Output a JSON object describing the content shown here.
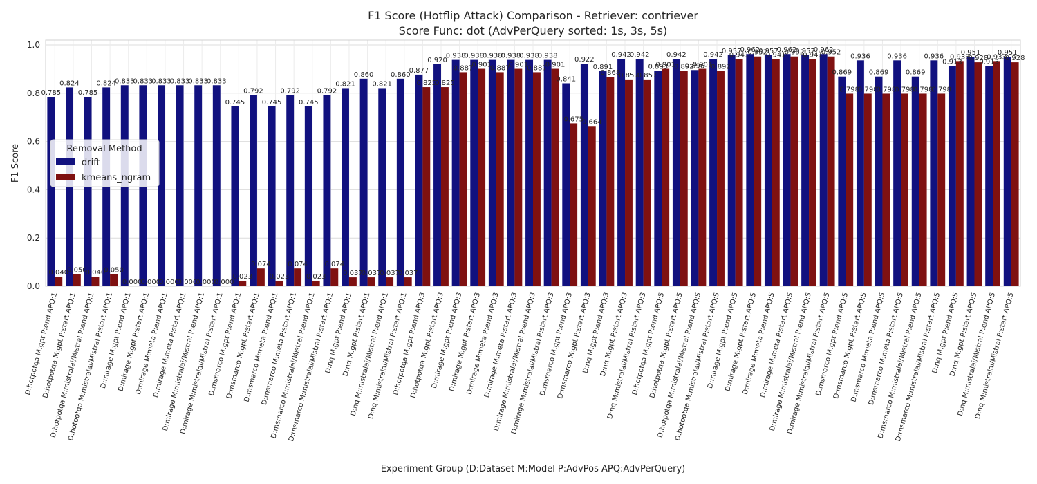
{
  "chart_data": {
    "type": "bar",
    "title": "F1 Score (Hotflip Attack) Comparison - Retriever: contriever",
    "subtitle": "Score Func: dot (AdvPerQuery sorted: 1s, 3s, 5s)",
    "xlabel": "Experiment Group (D:Dataset M:Model P:AdvPos APQ:AdvPerQuery)",
    "ylabel": "F1 Score",
    "ylim": [
      0,
      1.02
    ],
    "yticks": [
      "0.0",
      "0.2",
      "0.4",
      "0.6",
      "0.8",
      "1.0"
    ],
    "grid": true,
    "legend": {
      "title": "Removal Method",
      "position": "center-left"
    },
    "categories": [
      "D:hotpotqa M:gpt P:end APQ:1",
      "D:hotpotqa M:gpt P:start APQ:1",
      "D:hotpotqa M:mistralai/Mistral P:end APQ:1",
      "D:hotpotqa M:mistralai/Mistral P:start APQ:1",
      "D:mirage M:gpt P:end APQ:1",
      "D:mirage M:gpt P:start APQ:1",
      "D:mirage M:meta P:end APQ:1",
      "D:mirage M:meta P:start APQ:1",
      "D:mirage M:mistralai/Mistral P:end APQ:1",
      "D:mirage M:mistralai/Mistral P:start APQ:1",
      "D:msmarco M:gpt P:end APQ:1",
      "D:msmarco M:gpt P:start APQ:1",
      "D:msmarco M:meta P:end APQ:1",
      "D:msmarco M:meta P:start APQ:1",
      "D:msmarco M:mistralai/Mistral P:end APQ:1",
      "D:msmarco M:mistralai/Mistral P:start APQ:1",
      "D:nq M:gpt P:end APQ:1",
      "D:nq M:gpt P:start APQ:1",
      "D:nq M:mistralai/Mistral P:end APQ:1",
      "D:nq M:mistralai/Mistral P:start APQ:1",
      "D:hotpotqa M:gpt P:end APQ:3",
      "D:hotpotqa M:gpt P:start APQ:3",
      "D:mirage M:gpt P:end APQ:3",
      "D:mirage M:gpt P:start APQ:3",
      "D:mirage M:meta P:end APQ:3",
      "D:mirage M:meta P:start APQ:3",
      "D:mirage M:mistralai/Mistral P:end APQ:3",
      "D:mirage M:mistralai/Mistral P:start APQ:3",
      "D:msmarco M:gpt P:end APQ:3",
      "D:msmarco M:gpt P:start APQ:3",
      "D:nq M:gpt P:end APQ:3",
      "D:nq M:gpt P:start APQ:3",
      "D:nq M:mistralai/Mistral P:start APQ:3",
      "D:hotpotqa M:gpt P:end APQ:5",
      "D:hotpotqa M:gpt P:start APQ:5",
      "D:hotpotqa M:mistralai/Mistral P:end APQ:5",
      "D:hotpotqa M:mistralai/Mistral P:start APQ:5",
      "D:mirage M:gpt P:end APQ:5",
      "D:mirage M:gpt P:start APQ:5",
      "D:mirage M:meta P:end APQ:5",
      "D:mirage M:meta P:start APQ:5",
      "D:mirage M:mistralai/Mistral P:end APQ:5",
      "D:mirage M:mistralai/Mistral P:start APQ:5",
      "D:msmarco M:gpt P:end APQ:5",
      "D:msmarco M:gpt P:start APQ:5",
      "D:msmarco M:meta P:end APQ:5",
      "D:msmarco M:meta P:start APQ:5",
      "D:msmarco M:mistralai/Mistral P:end APQ:5",
      "D:msmarco M:mistralai/Mistral P:start APQ:5",
      "D:nq M:gpt P:end APQ:5",
      "D:nq M:gpt P:start APQ:5",
      "D:nq M:mistralai/Mistral P:end APQ:5",
      "D:nq M:mistralai/Mistral P:start APQ:5"
    ],
    "series": [
      {
        "name": "drift",
        "color": "#11117f",
        "values": [
          0.785,
          0.824,
          0.785,
          0.824,
          0.833,
          0.833,
          0.833,
          0.833,
          0.833,
          0.833,
          0.745,
          0.792,
          0.745,
          0.792,
          0.745,
          0.792,
          0.821,
          0.86,
          0.821,
          0.86,
          0.877,
          0.92,
          0.938,
          0.938,
          0.938,
          0.938,
          0.938,
          0.938,
          0.841,
          0.922,
          0.891,
          0.942,
          0.942,
          0.893,
          0.942,
          0.896,
          0.942,
          0.957,
          0.962,
          0.957,
          0.962,
          0.957,
          0.962,
          0.869,
          0.936,
          0.869,
          0.936,
          0.869,
          0.936,
          0.913,
          0.951,
          0.913,
          0.951
        ],
        "labels": [
          "0.785",
          "0.824",
          "0.785",
          "0.824",
          "0.833",
          "0.833",
          "0.833",
          "0.833",
          "0.833",
          "0.833",
          "0.745",
          "0.792",
          "0.745",
          "0.792",
          "0.745",
          "0.792",
          "0.821",
          "0.860",
          "0.821",
          "0.860",
          "0.877",
          "0.920",
          "0.938",
          "0.938",
          "0.938",
          "0.938",
          "0.938",
          "0.938",
          "0.841",
          "0.922",
          "0.891",
          "0.942",
          "0.942",
          "0.893",
          "0.942",
          "0.896",
          "0.942",
          "0.957",
          "0.962",
          "0.957",
          "0.962",
          "0.957",
          "0.962",
          "0.869",
          "0.936",
          "0.869",
          "0.936",
          "0.869",
          "0.936",
          "0.913",
          "0.951",
          "0.913",
          "0.951"
        ]
      },
      {
        "name": "kmeans_ngram",
        "color": "#7f1111",
        "values": [
          0.04,
          0.05,
          0.04,
          0.05,
          0.0,
          0.0,
          0.0,
          0.0,
          0.0,
          0.0,
          0.023,
          0.074,
          0.023,
          0.074,
          0.023,
          0.074,
          0.037,
          0.037,
          0.037,
          0.037,
          0.825,
          0.825,
          0.887,
          0.901,
          0.887,
          0.901,
          0.887,
          0.901,
          0.675,
          0.664,
          0.868,
          0.857,
          0.857,
          0.901,
          0.892,
          0.901,
          0.892,
          0.941,
          0.952,
          0.941,
          0.952,
          0.941,
          0.952,
          0.798,
          0.798,
          0.798,
          0.798,
          0.798,
          0.798,
          0.933,
          0.928,
          0.933,
          0.928
        ],
        "labels": [
          "0.040",
          "0.050",
          "0.040",
          "0.050",
          "0.000",
          "0.000",
          "0.000",
          "0.000",
          "0.000",
          "0.000",
          "0.023",
          "0.074",
          "0.023",
          "0.074",
          "0.023",
          "0.074",
          "0.037",
          "0.037",
          "0.037",
          "0.037",
          "0.825",
          "0.825",
          "0.887",
          "0.901",
          "0.887",
          "0.901",
          "0.887",
          "0.901",
          "0.675",
          "0.664",
          "0.868",
          "0.857",
          "0.857",
          "0.901",
          "0.892",
          "0.901",
          "0.892",
          "0.941",
          "0.952",
          "0.941",
          "0.952",
          "0.941",
          "0.952",
          "0.798",
          "0.798",
          "0.798",
          "0.798",
          "0.798",
          "0.798",
          "0.933",
          "0.928",
          "0.933",
          "0.928"
        ]
      }
    ]
  }
}
